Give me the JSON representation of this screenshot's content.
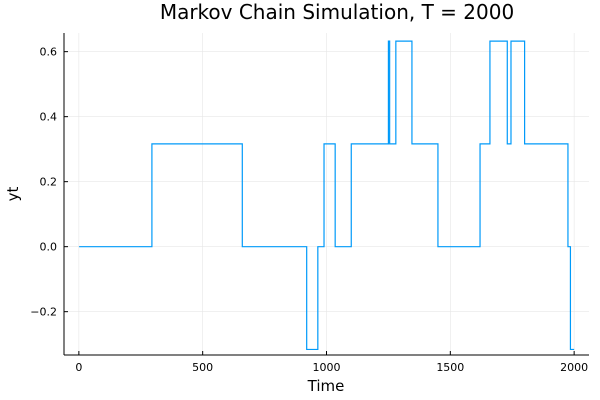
{
  "chart_data": {
    "type": "line",
    "title": "Markov Chain Simulation, T = 2000",
    "xlabel": "Time",
    "ylabel": "yt",
    "xlim": [
      -60,
      2060
    ],
    "ylim": [
      -0.3333,
      0.6574
    ],
    "grid": true,
    "legend": "none",
    "x_ticks": [
      0,
      500,
      1000,
      1500,
      2000
    ],
    "x_tick_labels": [
      "0",
      "500",
      "1000",
      "1500",
      "2000"
    ],
    "y_ticks": [
      -0.2,
      0.0,
      0.2,
      0.4,
      0.6
    ],
    "y_tick_labels": [
      "−0.2",
      "0.0",
      "0.2",
      "0.4",
      "0.6"
    ],
    "series": [
      {
        "color": "#009af9",
        "step": true,
        "x": [
          1,
          295,
          660,
          920,
          965,
          990,
          1035,
          1100,
          1250,
          1255,
          1260,
          1280,
          1345,
          1450,
          1620,
          1660,
          1730,
          1745,
          1800,
          1880,
          1975,
          1985,
          2000
        ],
        "y": [
          0.0,
          0.3162,
          0.0,
          -0.3162,
          0.0,
          0.3162,
          0.0,
          0.3162,
          0.6325,
          0.3162,
          0.3162,
          0.6325,
          0.3162,
          0.0,
          0.3162,
          0.6325,
          0.3162,
          0.6325,
          0.3162,
          0.3162,
          0.0,
          -0.3162,
          -0.3162
        ]
      }
    ]
  }
}
